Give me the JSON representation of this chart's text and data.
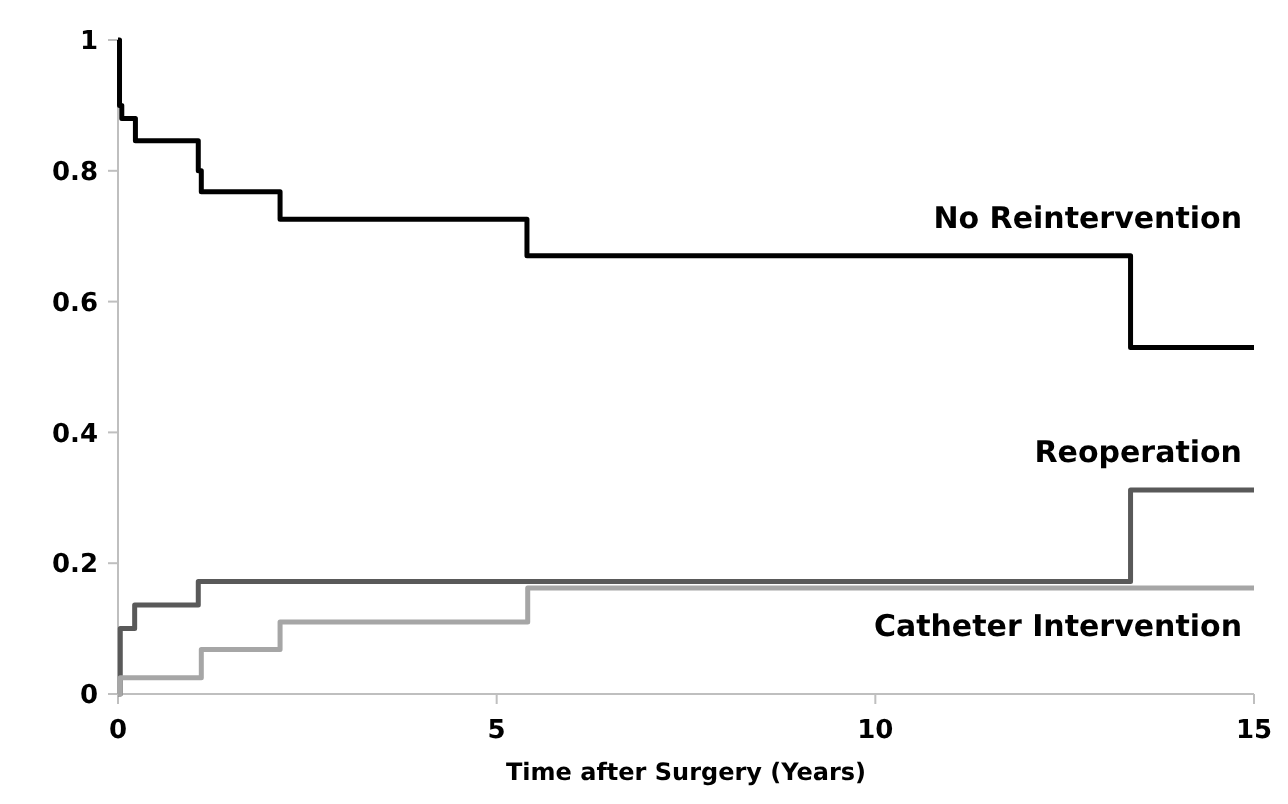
{
  "chart_data": {
    "type": "step",
    "xlabel": "Time after Surgery (Years)",
    "xlim": [
      0,
      15
    ],
    "xticks": [
      0,
      5,
      10,
      15
    ],
    "ylim": [
      0,
      1
    ],
    "yticks": [
      0,
      0.2,
      0.4,
      0.6,
      0.8,
      1
    ],
    "grid": false,
    "series": [
      {
        "name": "No Reintervention",
        "color": "#000000",
        "x": [
          0,
          0.02,
          0.05,
          0.23,
          1.06,
          1.1,
          2.14,
          5.4,
          13.37,
          15
        ],
        "values": [
          1,
          0.9,
          0.88,
          0.846,
          0.8,
          0.768,
          0.726,
          0.67,
          0.53,
          0.53
        ]
      },
      {
        "name": "Reoperation",
        "color": "#595959",
        "x": [
          0,
          0.03,
          0.22,
          1.06,
          13.37,
          15
        ],
        "values": [
          0,
          0.1,
          0.136,
          0.172,
          0.312,
          0.312
        ]
      },
      {
        "name": "Catheter Intervention",
        "color": "#a6a6a6",
        "x": [
          0,
          0.03,
          1.1,
          2.14,
          5.41,
          15
        ],
        "values": [
          0,
          0.025,
          0.068,
          0.11,
          0.162,
          0.162
        ]
      }
    ]
  }
}
